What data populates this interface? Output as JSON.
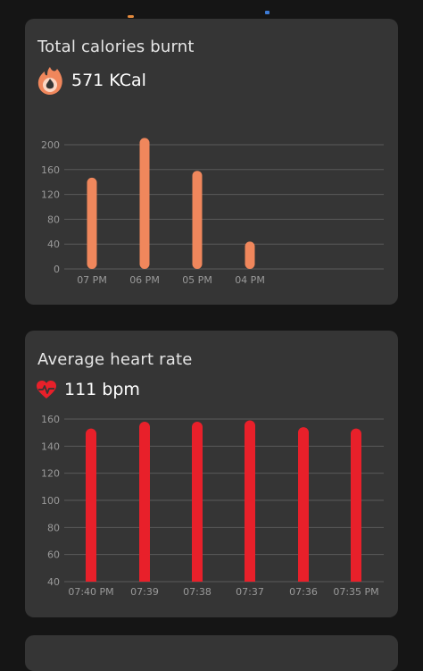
{
  "cards": [
    {
      "title": "Total calories burnt",
      "value": "571 KCal",
      "icon": "flame-icon",
      "chart_data": {
        "type": "bar",
        "categories": [
          "07 PM",
          "06 PM",
          "05 PM",
          "04 PM"
        ],
        "values": [
          147,
          211,
          158,
          44
        ],
        "ylim": [
          0,
          200
        ],
        "yticks": [
          0,
          40,
          80,
          120,
          160,
          200
        ],
        "color": "#F0875C",
        "grid": true
      }
    },
    {
      "title": "Average heart rate",
      "value": "111 bpm",
      "icon": "heart-pulse-icon",
      "chart_data": {
        "type": "bar",
        "categories": [
          "07:40 PM",
          "07:39",
          "07:38",
          "07:37",
          "07:36",
          "07:35 PM"
        ],
        "values": [
          153,
          158,
          158,
          159,
          154,
          153
        ],
        "ylim": [
          40,
          160
        ],
        "yticks": [
          40,
          60,
          80,
          100,
          120,
          140,
          160
        ],
        "color": "#E8202A",
        "grid": true
      }
    }
  ]
}
